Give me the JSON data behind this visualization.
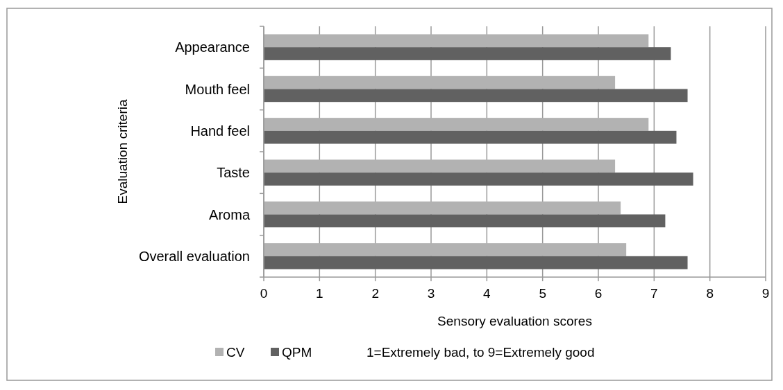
{
  "chart_data": {
    "type": "bar",
    "orientation": "horizontal",
    "xlabel": "Sensory evaluation scores",
    "ylabel": "Evaluation criteria",
    "categories": [
      "Appearance",
      "Mouth feel",
      "Hand feel",
      "Taste",
      "Aroma",
      "Overall evaluation"
    ],
    "series": [
      {
        "name": "CV",
        "color": "#b2b2b2",
        "values": [
          6.9,
          6.3,
          6.9,
          6.3,
          6.4,
          6.5
        ]
      },
      {
        "name": "QPM",
        "color": "#616161",
        "values": [
          7.3,
          7.6,
          7.4,
          7.7,
          7.2,
          7.6
        ]
      }
    ],
    "xlim": [
      0,
      9
    ],
    "xticks": [
      0,
      1,
      2,
      3,
      4,
      5,
      6,
      7,
      8,
      9
    ],
    "grid": "x",
    "legend": "bottom",
    "annotations": [
      "1=Extremely bad, to 9=Extremely good"
    ]
  }
}
